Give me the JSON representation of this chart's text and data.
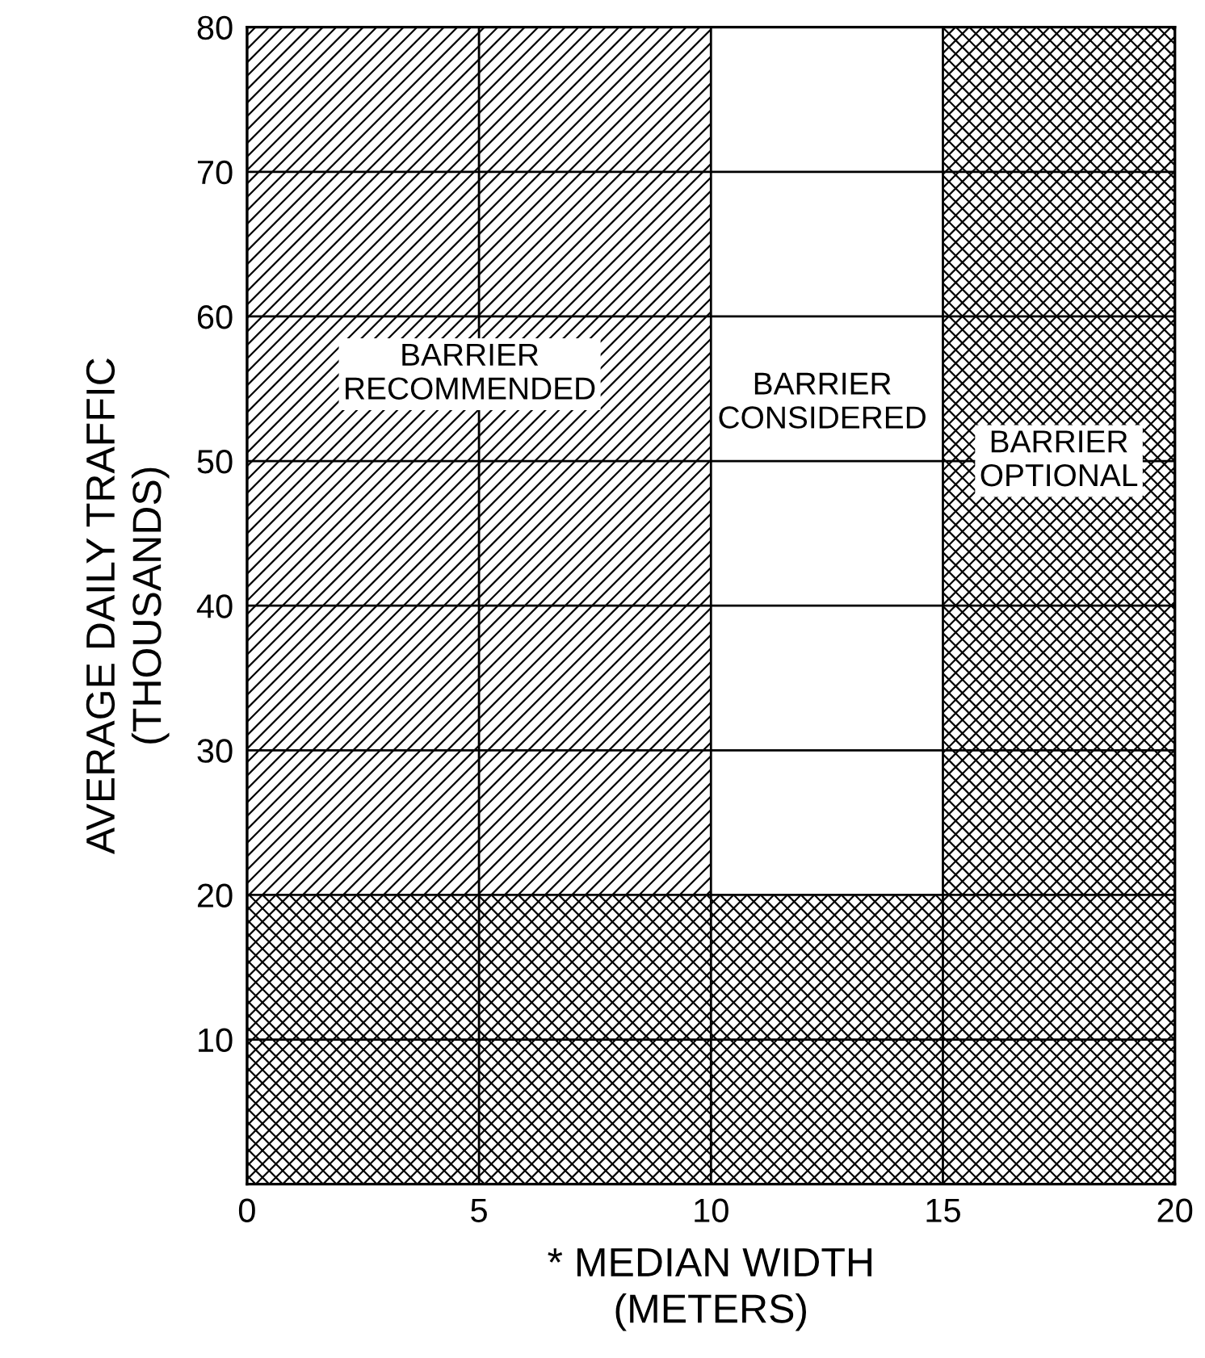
{
  "chart_data": {
    "type": "bar",
    "stacked": true,
    "x": [
      2.5,
      7.5,
      12.5,
      17.5
    ],
    "series": [
      {
        "color": "#000000",
        "values": [
          20,
          20,
          20,
          20
        ]
      },
      {
        "color": "#000000",
        "values": [
          60,
          60,
          null,
          null
        ]
      },
      {
        "color": "#000000",
        "values": [
          null,
          null,
          null,
          60
        ]
      }
    ],
    "xlim": [
      0,
      20
    ],
    "xticks": [
      0,
      5,
      10,
      15,
      20
    ],
    "ylim": [
      0,
      80
    ],
    "yticks": [
      10,
      20,
      30,
      40,
      50,
      60,
      70,
      80
    ],
    "grid": true,
    "xlabel": "* MEDIAN WIDTH\n(METERS)",
    "ylabel": "AVERAGE DAILY TRAFFIC\n(THOUSANDS)",
    "annotations": [
      "BARRIER\nRECOMMENDED",
      "BARRIER\nCONSIDERED",
      "BARRIER\nOPTIONAL"
    ]
  }
}
